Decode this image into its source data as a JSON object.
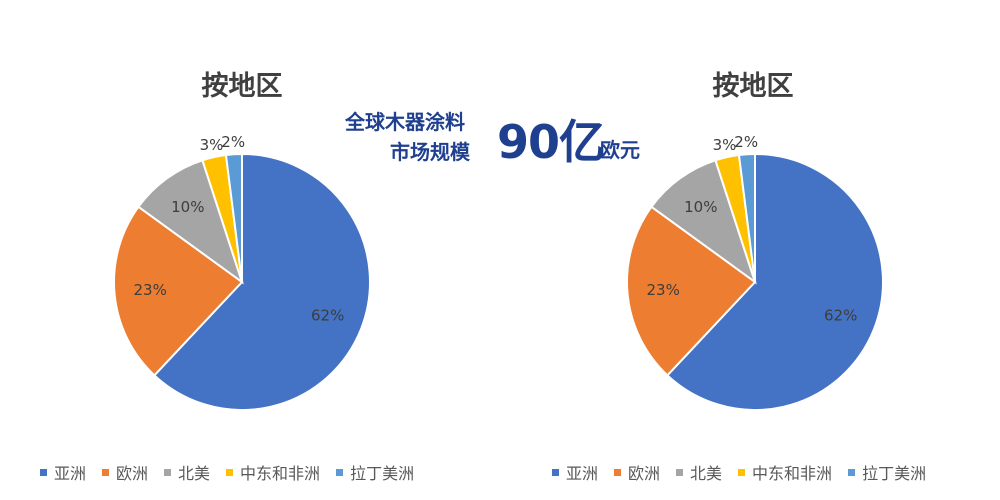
{
  "headline": {
    "line1": "全球木器涂料",
    "line2": "市场规模",
    "value": "90亿",
    "unit": "欧元"
  },
  "legend_names": [
    "亚洲",
    "欧洲",
    "北美",
    "中东和非洲",
    "拉丁美洲"
  ],
  "chart_data": [
    {
      "type": "pie",
      "title": "按地区",
      "categories": [
        "亚洲",
        "欧洲",
        "北美",
        "中东和非洲",
        "拉丁美洲"
      ],
      "values": [
        62,
        23,
        10,
        3,
        2
      ],
      "labels": [
        "62%",
        "23%",
        "10%",
        "3%",
        "2%"
      ],
      "colors": [
        "#4472c4",
        "#ed7d31",
        "#a5a5a5",
        "#ffc000",
        "#5b9bd5"
      ],
      "legend": "bottom"
    },
    {
      "type": "pie",
      "title": "按地区",
      "categories": [
        "亚洲",
        "欧洲",
        "北美",
        "中东和非洲",
        "拉丁美洲"
      ],
      "values": [
        62,
        23,
        10,
        3,
        2
      ],
      "labels": [
        "62%",
        "23%",
        "10%",
        "3%",
        "2%"
      ],
      "colors": [
        "#4472c4",
        "#ed7d31",
        "#a5a5a5",
        "#ffc000",
        "#5b9bd5"
      ],
      "legend": "bottom"
    }
  ]
}
